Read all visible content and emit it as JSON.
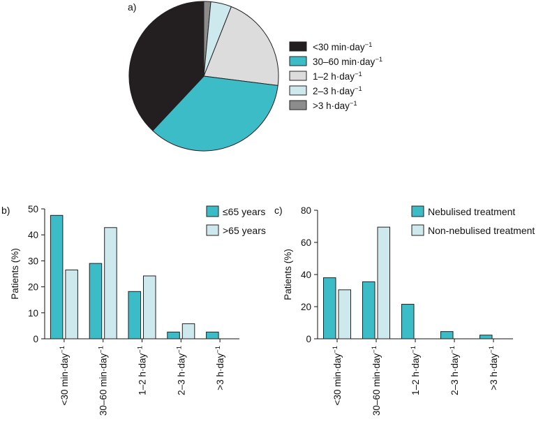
{
  "chart_data": [
    {
      "panel_label": "a)",
      "type": "pie",
      "categories": [
        "<30 min·day",
        "30–60 min·day",
        "1–2 h·day",
        "2–3 h·day",
        ">3 h·day"
      ],
      "unit_suffix": "−1",
      "values": [
        38,
        35,
        21,
        4.5,
        1.5
      ],
      "colors": [
        "#231f20",
        "#3cbcc6",
        "#dcdcdc",
        "#cde9ee",
        "#8c8c8c"
      ],
      "legend_position": "right"
    },
    {
      "panel_label": "b)",
      "type": "bar",
      "categories": [
        "<30 min·day",
        "30–60 min·day",
        "1–2 h·day",
        "2–3 h·day",
        ">3 h·day"
      ],
      "unit_suffix": "−1",
      "series": [
        {
          "name": "≤65 years",
          "values": [
            47.5,
            29,
            18.2,
            2.6,
            2.6
          ],
          "color": "#3cbcc6"
        },
        {
          "name": ">65 years",
          "values": [
            26.5,
            42.8,
            24.2,
            5.8,
            0
          ],
          "color": "#cde9ee"
        }
      ],
      "ylabel": "Patients (%)",
      "ylim": [
        0,
        50
      ],
      "yticks": [
        0,
        10,
        20,
        30,
        40,
        50
      ],
      "legend_position": "top-right"
    },
    {
      "panel_label": "c)",
      "type": "bar",
      "categories": [
        "<30 min·day",
        "30–60 min·day",
        "1–2 h·day",
        "2–3 h·day",
        ">3 h·day"
      ],
      "unit_suffix": "−1",
      "series": [
        {
          "name": "Nebulised treatment",
          "values": [
            38,
            35.5,
            21.5,
            4.5,
            2.3
          ],
          "color": "#3cbcc6"
        },
        {
          "name": "Non-nebulised treatment",
          "values": [
            30.5,
            69.5,
            0,
            0,
            0
          ],
          "color": "#cde9ee"
        }
      ],
      "ylabel": "Patients (%)",
      "ylim": [
        0,
        80
      ],
      "yticks": [
        0,
        20,
        40,
        60,
        80
      ],
      "legend_position": "top-right"
    }
  ]
}
